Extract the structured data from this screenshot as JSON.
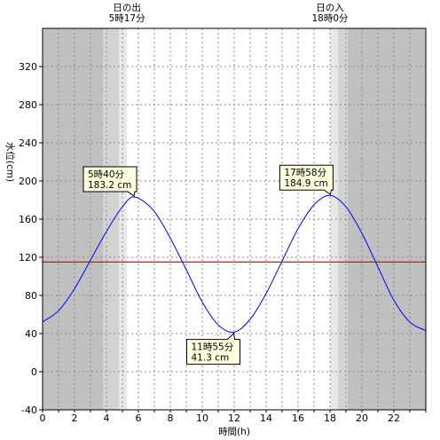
{
  "chart_data": {
    "type": "line",
    "xlabel": "時間(h)",
    "ylabel": "水位(cm)",
    "xlim": [
      0,
      24
    ],
    "ylim": [
      -40,
      360
    ],
    "x_ticks": [
      0,
      2,
      4,
      6,
      8,
      10,
      12,
      14,
      16,
      18,
      20,
      22
    ],
    "y_ticks": [
      -40,
      0,
      40,
      80,
      120,
      160,
      200,
      240,
      280,
      320
    ],
    "grid": true,
    "reference_line": {
      "value": 115,
      "color": "#ff0000"
    },
    "colors": {
      "series": "#0000ff",
      "night": "#c0c0c0",
      "twilight_dark": "#d3d3d3",
      "twilight_light": "#e8e8e8",
      "day": "#ffffff",
      "callout_fill": "#ffffe0"
    },
    "bands": [
      {
        "from": 0,
        "to": 3.8,
        "kind": "night"
      },
      {
        "from": 3.8,
        "to": 4.8,
        "kind": "twilight_dark"
      },
      {
        "from": 4.8,
        "to": 5.283,
        "kind": "twilight_light"
      },
      {
        "from": 18.0,
        "to": 18.5,
        "kind": "twilight_light"
      },
      {
        "from": 18.5,
        "to": 19.1,
        "kind": "twilight_dark"
      },
      {
        "from": 19.1,
        "to": 24,
        "kind": "night"
      }
    ],
    "sun_events": [
      {
        "label": "日の出",
        "time_label": "5時17分",
        "x": 5.283
      },
      {
        "label": "日の入",
        "time_label": "18時0分",
        "x": 18.0
      }
    ],
    "series": [
      {
        "x": [
          0,
          1,
          2,
          3,
          4,
          5,
          5.667,
          6,
          7,
          8,
          9,
          10,
          11,
          11.917,
          13,
          14,
          15,
          16,
          17,
          17.967,
          19,
          20,
          21,
          22,
          23,
          24
        ],
        "y": [
          52,
          64,
          87,
          117,
          147,
          173,
          183.2,
          182,
          168,
          140,
          107,
          73,
          49,
          41.3,
          55,
          82,
          116,
          150,
          175,
          184.9,
          173,
          145,
          110,
          75,
          52,
          43
        ]
      }
    ],
    "annotations": [
      {
        "time_label": "5時40分",
        "value_label": "183.2 cm",
        "x": 5.667,
        "y": 183.2,
        "placement": "above"
      },
      {
        "time_label": "11時55分",
        "value_label": "41.3 cm",
        "x": 11.917,
        "y": 41.3,
        "placement": "below"
      },
      {
        "time_label": "17時58分",
        "value_label": "184.9 cm",
        "x": 17.967,
        "y": 184.9,
        "placement": "above"
      }
    ]
  }
}
